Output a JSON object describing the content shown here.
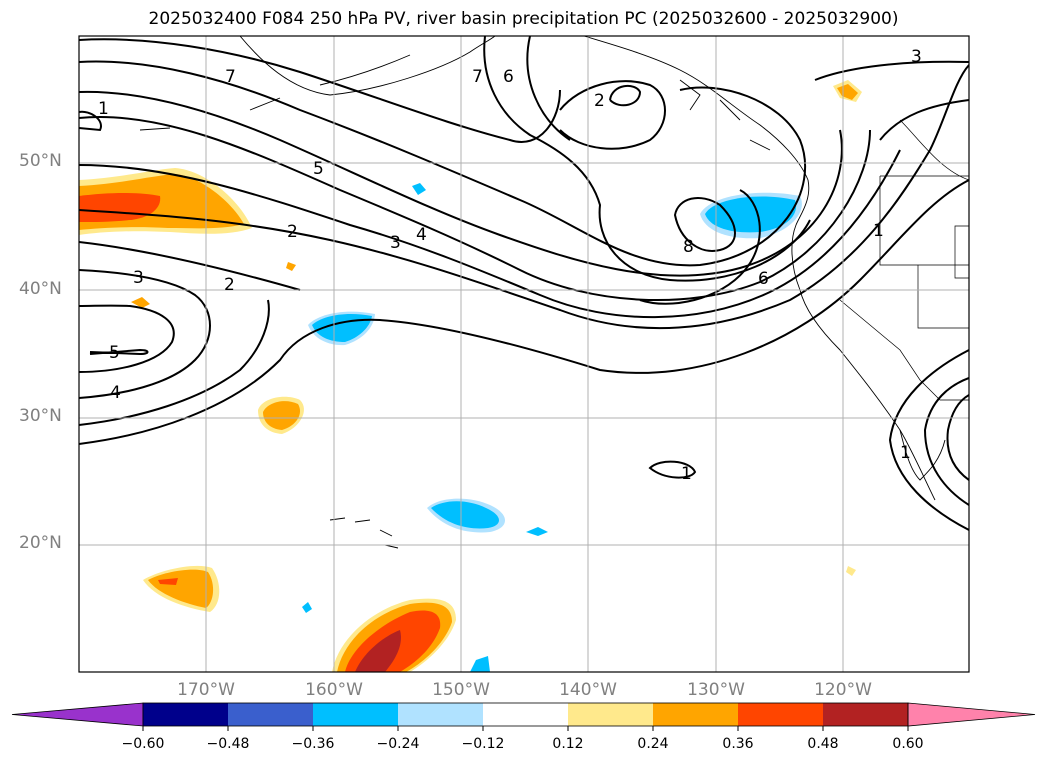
{
  "title": "2025032400 F084 250 hPa PV, river basin precipitation PC (2025032600 - 2025032900)",
  "lat_labels": [
    "50°N",
    "40°N",
    "30°N",
    "20°N"
  ],
  "lon_labels": [
    "170°W",
    "160°W",
    "150°W",
    "140°W",
    "130°W",
    "120°W"
  ],
  "contour_labels": [
    "1",
    "7",
    "7",
    "6",
    "2",
    "3",
    "5",
    "2",
    "3",
    "4",
    "2",
    "3",
    "5",
    "4",
    "8",
    "6",
    "1",
    "1",
    "1"
  ],
  "colorbar": {
    "ticks": [
      "−0.60",
      "−0.48",
      "−0.36",
      "−0.24",
      "−0.12",
      "0.12",
      "0.24",
      "0.36",
      "0.48",
      "0.60"
    ],
    "colors": [
      "#9932cc",
      "#00008b",
      "#3a5fcd",
      "#00bfff",
      "#b0e2ff",
      "#ffffff",
      "#ffe98c",
      "#ffa500",
      "#ff4500",
      "#b22222",
      "#ff82ab"
    ]
  }
}
